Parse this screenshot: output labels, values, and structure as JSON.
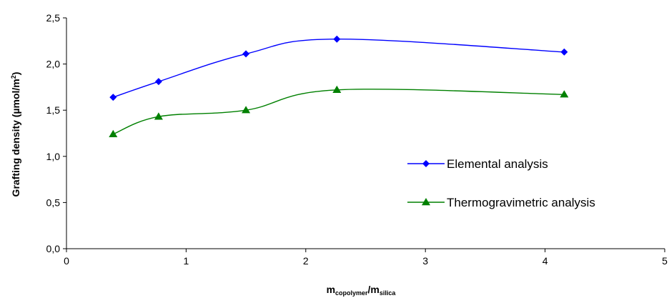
{
  "chart_data": {
    "type": "line",
    "xlabel_main": "m",
    "xlabel_sub1": "copolymer",
    "xlabel_sep": "/m",
    "xlabel_sub2": "silica",
    "ylabel_main": "Grafting density (µmol/m",
    "ylabel_sup": "2",
    "ylabel_end": ")",
    "xlim": [
      0,
      5
    ],
    "ylim": [
      0,
      2.5
    ],
    "x_ticks": [
      "0",
      "1",
      "2",
      "3",
      "4",
      "5"
    ],
    "y_ticks": [
      "0,0",
      "0,5",
      "1,0",
      "1,5",
      "2,0",
      "2,5"
    ],
    "grid": false,
    "legend_position": "right",
    "series": [
      {
        "name": "Elemental analysis",
        "color": "#0000ff",
        "marker": "diamond",
        "x": [
          0.39,
          0.77,
          1.5,
          2.26,
          4.16
        ],
        "y": [
          1.64,
          1.81,
          2.11,
          2.27,
          2.13
        ]
      },
      {
        "name": "Thermogravimetric analysis",
        "color": "#008000",
        "marker": "triangle",
        "x": [
          0.39,
          0.77,
          1.5,
          2.26,
          4.16
        ],
        "y": [
          1.24,
          1.43,
          1.5,
          1.72,
          1.67
        ]
      }
    ]
  }
}
